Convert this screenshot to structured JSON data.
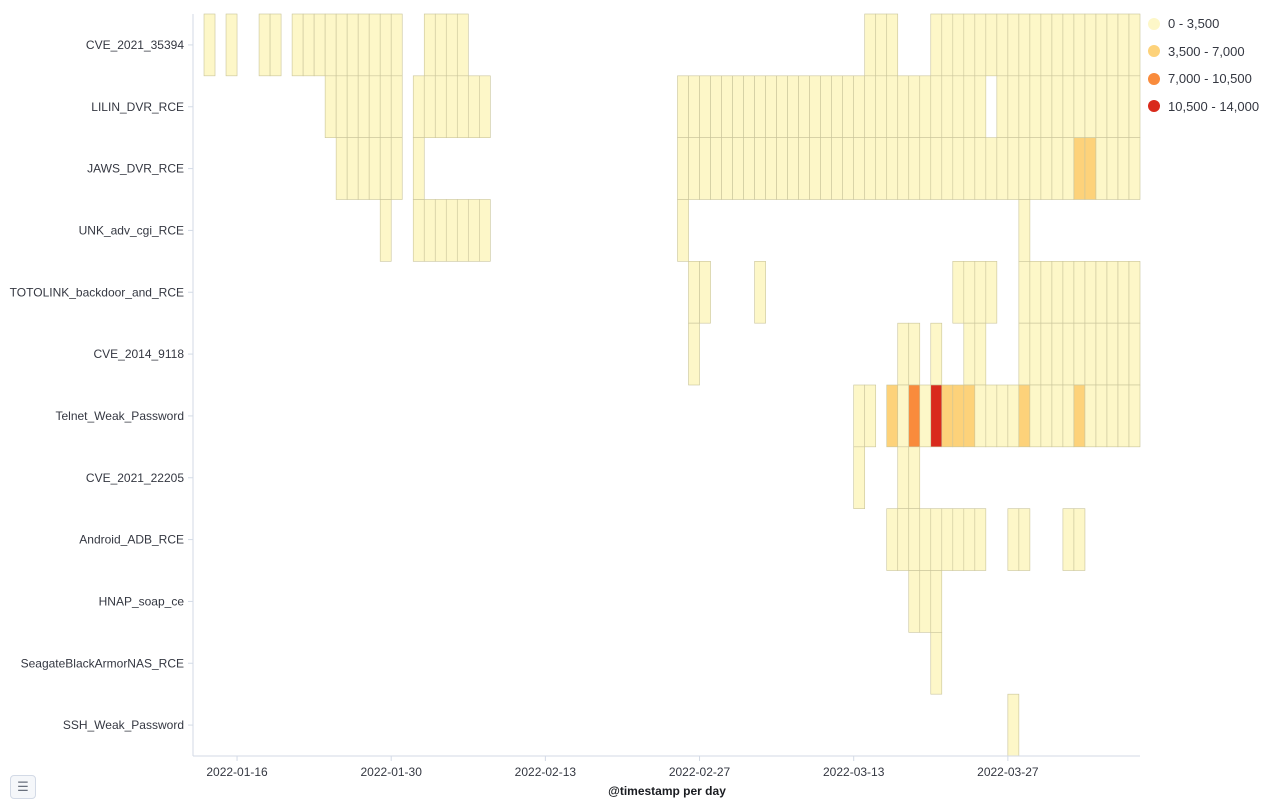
{
  "chart_data": {
    "type": "heatmap",
    "xlabel": "@timestamp per day",
    "x_tick_labels": [
      "2022-01-16",
      "2022-01-30",
      "2022-02-13",
      "2022-02-27",
      "2022-03-13",
      "2022-03-27"
    ],
    "x_range": [
      "2022-01-12",
      "2022-04-07"
    ],
    "categories": [
      "CVE_2021_35394",
      "LILIN_DVR_RCE",
      "JAWS_DVR_RCE",
      "UNK_adv_cgi_RCE",
      "TOTOLINK_backdoor_and_RCE",
      "CVE_2014_9118",
      "Telnet_Weak_Password",
      "CVE_2021_22205",
      "Android_ADB_RCE",
      "HNAP_soap_ce",
      "SeagateBlackArmorNAS_RCE",
      "SSH_Weak_Password"
    ],
    "legend": [
      {
        "label": "0 - 3,500",
        "color": "#fdf7c8"
      },
      {
        "label": "3,500 - 7,000",
        "color": "#fdd27a"
      },
      {
        "label": "7,000 - 10,500",
        "color": "#f98b3c"
      },
      {
        "label": "10,500 - 14,000",
        "color": "#d92a1c"
      }
    ],
    "ranges": [
      {
        "category": "CVE_2021_35394",
        "days": [
          [
            "2022-01-13",
            "2022-01-13"
          ],
          [
            "2022-01-15",
            "2022-01-15"
          ],
          [
            "2022-01-18",
            "2022-01-19"
          ],
          [
            "2022-01-21",
            "2022-01-30"
          ],
          [
            "2022-02-02",
            "2022-02-05"
          ],
          [
            "2022-03-14",
            "2022-03-16"
          ],
          [
            "2022-03-20",
            "2022-04-07"
          ]
        ]
      },
      {
        "category": "LILIN_DVR_RCE",
        "days": [
          [
            "2022-01-24",
            "2022-01-30"
          ],
          [
            "2022-02-01",
            "2022-02-07"
          ],
          [
            "2022-02-25",
            "2022-03-24"
          ],
          [
            "2022-03-26",
            "2022-04-07"
          ]
        ]
      },
      {
        "category": "JAWS_DVR_RCE",
        "days": [
          [
            "2022-01-25",
            "2022-01-30"
          ],
          [
            "2022-02-01",
            "2022-02-01"
          ],
          [
            "2022-02-25",
            "2022-04-07"
          ]
        ]
      },
      {
        "category": "UNK_adv_cgi_RCE",
        "days": [
          [
            "2022-01-29",
            "2022-01-29"
          ],
          [
            "2022-02-01",
            "2022-02-07"
          ],
          [
            "2022-02-25",
            "2022-02-25"
          ],
          [
            "2022-03-28",
            "2022-03-28"
          ]
        ]
      },
      {
        "category": "TOTOLINK_backdoor_and_RCE",
        "days": [
          [
            "2022-02-26",
            "2022-02-27"
          ],
          [
            "2022-03-04",
            "2022-03-04"
          ],
          [
            "2022-03-22",
            "2022-03-25"
          ],
          [
            "2022-03-28",
            "2022-04-07"
          ]
        ]
      },
      {
        "category": "CVE_2014_9118",
        "days": [
          [
            "2022-02-26",
            "2022-02-26"
          ],
          [
            "2022-03-17",
            "2022-03-18"
          ],
          [
            "2022-03-20",
            "2022-03-20"
          ],
          [
            "2022-03-23",
            "2022-03-24"
          ],
          [
            "2022-03-28",
            "2022-04-07"
          ]
        ]
      },
      {
        "category": "Telnet_Weak_Password",
        "days": [
          [
            "2022-03-13",
            "2022-03-14"
          ],
          [
            "2022-03-16",
            "2022-04-07"
          ]
        ]
      },
      {
        "category": "CVE_2021_22205",
        "days": [
          [
            "2022-03-13",
            "2022-03-13"
          ],
          [
            "2022-03-17",
            "2022-03-18"
          ]
        ]
      },
      {
        "category": "Android_ADB_RCE",
        "days": [
          [
            "2022-03-16",
            "2022-03-24"
          ],
          [
            "2022-03-27",
            "2022-03-28"
          ],
          [
            "2022-04-01",
            "2022-04-02"
          ]
        ]
      },
      {
        "category": "HNAP_soap_ce",
        "days": [
          [
            "2022-03-18",
            "2022-03-20"
          ]
        ]
      },
      {
        "category": "SeagateBlackArmorNAS_RCE",
        "days": [
          [
            "2022-03-20",
            "2022-03-20"
          ]
        ]
      },
      {
        "category": "SSH_Weak_Password",
        "days": [
          [
            "2022-03-27",
            "2022-03-27"
          ]
        ]
      }
    ],
    "highlights": [
      {
        "category": "JAWS_DVR_RCE",
        "date": "2022-04-02",
        "value": 4500
      },
      {
        "category": "JAWS_DVR_RCE",
        "date": "2022-04-03",
        "value": 4500
      },
      {
        "category": "Telnet_Weak_Password",
        "date": "2022-03-16",
        "value": 4500
      },
      {
        "category": "Telnet_Weak_Password",
        "date": "2022-03-18",
        "value": 8500
      },
      {
        "category": "Telnet_Weak_Password",
        "date": "2022-03-20",
        "value": 13000
      },
      {
        "category": "Telnet_Weak_Password",
        "date": "2022-03-21",
        "value": 4500
      },
      {
        "category": "Telnet_Weak_Password",
        "date": "2022-03-22",
        "value": 4500
      },
      {
        "category": "Telnet_Weak_Password",
        "date": "2022-03-23",
        "value": 4500
      },
      {
        "category": "Telnet_Weak_Password",
        "date": "2022-03-28",
        "value": 4500
      },
      {
        "category": "Telnet_Weak_Password",
        "date": "2022-04-02",
        "value": 4500
      }
    ],
    "default_value": 1000
  },
  "ui": {
    "legend_toggle_icon": "list-icon"
  }
}
